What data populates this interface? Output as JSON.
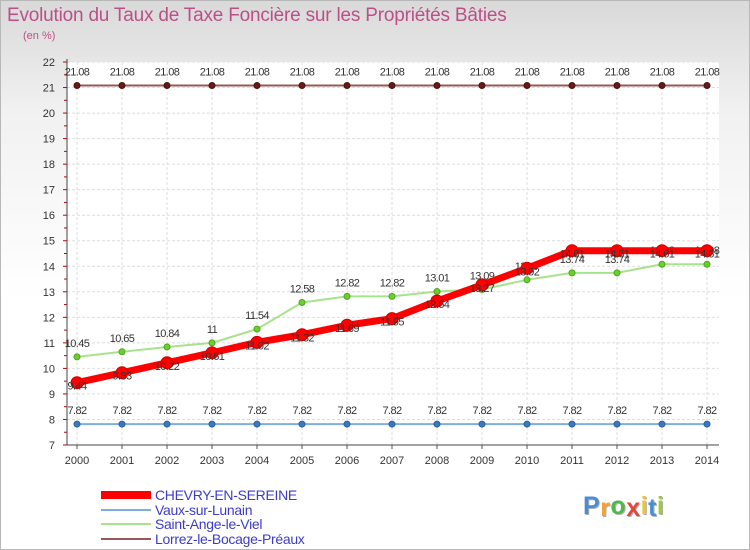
{
  "chart_data": {
    "type": "line",
    "title": "Evolution du Taux de Taxe Foncière sur les Propriétés Bâties",
    "subtitle": "(en %)",
    "xlabel": "",
    "ylabel": "(en %)",
    "ylim": [
      7,
      22
    ],
    "grid": true,
    "legend_position": "bottom-left",
    "categories": [
      "2000",
      "2001",
      "2002",
      "2003",
      "2004",
      "2005",
      "2006",
      "2007",
      "2008",
      "2009",
      "2010",
      "2011",
      "2012",
      "2013",
      "2014"
    ],
    "y_ticks": [
      "7",
      "8",
      "9",
      "10",
      "11",
      "12",
      "13",
      "14",
      "15",
      "16",
      "17",
      "18",
      "19",
      "20",
      "21",
      "22"
    ],
    "series": [
      {
        "name": "CHEVRY-EN-SEREINE",
        "color": "#ff0000",
        "values": [
          9.44,
          9.83,
          10.22,
          10.61,
          11.02,
          11.32,
          11.69,
          11.95,
          12.64,
          13.27,
          13.92,
          14.61,
          14.61,
          14.61,
          14.61
        ],
        "labels": [
          "9.44",
          "9.83",
          "10.22",
          "10.61",
          "11.02",
          "11.32",
          "11.69",
          "11.95",
          "12.64",
          "13.27",
          "13.92",
          "14.61",
          "14.61",
          "14.61",
          "14.61"
        ]
      },
      {
        "name": "Vaux-sur-Lunain",
        "color": "#6a9fd0",
        "values": [
          7.82,
          7.82,
          7.82,
          7.82,
          7.82,
          7.82,
          7.82,
          7.82,
          7.82,
          7.82,
          7.82,
          7.82,
          7.82,
          7.82,
          7.82
        ],
        "labels": [
          "7.82",
          "7.82",
          "7.82",
          "7.82",
          "7.82",
          "7.82",
          "7.82",
          "7.82",
          "7.82",
          "7.82",
          "7.82",
          "7.82",
          "7.82",
          "7.82",
          "7.82"
        ]
      },
      {
        "name": "Saint-Ange-le-Viel",
        "color": "#a6e08a",
        "values": [
          10.45,
          10.65,
          10.84,
          11.0,
          11.54,
          12.58,
          12.82,
          12.82,
          13.01,
          13.09,
          13.47,
          13.74,
          13.74,
          14.08,
          14.08
        ],
        "labels": [
          "10.45",
          "10.65",
          "10.84",
          "11",
          "11.54",
          "12.58",
          "12.82",
          "12.82",
          "13.01",
          "13.09",
          "13.47",
          "13.74",
          "13.74",
          "14.08",
          "14.08"
        ]
      },
      {
        "name": "Lorrez-le-Bocage-Préaux",
        "color": "#8a4a4a",
        "values": [
          21.08,
          21.08,
          21.08,
          21.08,
          21.08,
          21.08,
          21.08,
          21.08,
          21.08,
          21.08,
          21.08,
          21.08,
          21.08,
          21.08,
          21.08
        ],
        "labels": [
          "21.08",
          "21.08",
          "21.08",
          "21.08",
          "21.08",
          "21.08",
          "21.08",
          "21.08",
          "21.08",
          "21.08",
          "21.08",
          "21.08",
          "21.08",
          "21.08",
          "21.08"
        ]
      }
    ]
  },
  "logo": {
    "letters": [
      "P",
      "r",
      "o",
      "x",
      "i",
      "t",
      "i"
    ],
    "colors": [
      "#4a8ed0",
      "#f2a23a",
      "#4fb84a",
      "#e04a3a",
      "#f2c23a",
      "#4a8ed0",
      "#9acd32"
    ]
  }
}
